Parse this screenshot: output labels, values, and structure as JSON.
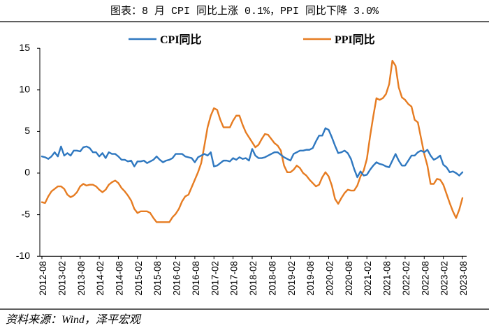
{
  "footer": {
    "source": "资料来源：Wind，泽平宏观"
  },
  "chart_data": {
    "type": "line",
    "title": "图表：8 月 CPI 同比上涨 0.1%，PPI 同比下降 3.0%",
    "ylim": [
      -10,
      15
    ],
    "yticks": [
      15,
      10,
      5,
      0,
      -5,
      -10
    ],
    "grid": false,
    "x_tick_step_months": 6,
    "x_ticks": [
      "2012-08",
      "2013-02",
      "2013-08",
      "2014-02",
      "2014-08",
      "2015-02",
      "2015-08",
      "2016-02",
      "2016-08",
      "2017-02",
      "2017-08",
      "2018-02",
      "2018-08",
      "2019-02",
      "2019-08",
      "2020-02",
      "2020-08",
      "2021-02",
      "2021-08",
      "2022-02",
      "2022-08",
      "2023-02",
      "2023-08"
    ],
    "series": [
      {
        "name": "CPI同比",
        "color": "#2f78c0",
        "values": [
          2.0,
          1.9,
          1.7,
          2.0,
          2.5,
          2.0,
          3.2,
          2.1,
          2.4,
          2.1,
          2.7,
          2.7,
          2.6,
          3.1,
          3.2,
          3.0,
          2.5,
          2.5,
          2.0,
          2.4,
          1.8,
          2.5,
          2.3,
          2.3,
          2.0,
          1.6,
          1.6,
          1.4,
          1.5,
          0.8,
          1.4,
          1.4,
          1.5,
          1.2,
          1.4,
          1.6,
          2.0,
          1.6,
          1.3,
          1.5,
          1.6,
          1.8,
          2.3,
          2.3,
          2.3,
          2.0,
          1.9,
          1.8,
          1.3,
          1.9,
          2.1,
          2.3,
          2.1,
          2.5,
          0.8,
          0.9,
          1.2,
          1.5,
          1.5,
          1.4,
          1.8,
          1.6,
          1.9,
          1.7,
          1.8,
          1.5,
          2.9,
          2.1,
          1.8,
          1.8,
          1.9,
          2.1,
          2.3,
          2.5,
          2.5,
          2.2,
          1.9,
          1.7,
          1.5,
          2.3,
          2.5,
          2.7,
          2.7,
          2.8,
          2.8,
          3.0,
          3.8,
          4.5,
          4.5,
          5.4,
          5.2,
          4.3,
          3.3,
          2.4,
          2.5,
          2.7,
          2.4,
          1.7,
          0.5,
          -0.5,
          0.2,
          -0.3,
          -0.2,
          0.4,
          0.9,
          1.3,
          1.1,
          1.0,
          0.8,
          0.7,
          1.5,
          2.3,
          1.5,
          0.9,
          0.9,
          1.5,
          2.1,
          2.1,
          2.5,
          2.7,
          2.5,
          2.8,
          2.1,
          1.6,
          1.8,
          2.1,
          1.0,
          0.7,
          0.1,
          0.2,
          0.0,
          -0.3,
          0.1
        ]
      },
      {
        "name": "PPI同比",
        "color": "#e67c22",
        "values": [
          -3.5,
          -3.6,
          -2.8,
          -2.2,
          -1.9,
          -1.6,
          -1.6,
          -1.9,
          -2.6,
          -2.9,
          -2.7,
          -2.3,
          -1.6,
          -1.3,
          -1.5,
          -1.4,
          -1.4,
          -1.6,
          -2.0,
          -2.3,
          -2.0,
          -1.4,
          -1.1,
          -0.9,
          -1.2,
          -1.8,
          -2.2,
          -2.7,
          -3.3,
          -4.3,
          -4.8,
          -4.6,
          -4.6,
          -4.6,
          -4.8,
          -5.4,
          -5.9,
          -5.9,
          -5.9,
          -5.9,
          -5.9,
          -5.3,
          -4.9,
          -4.3,
          -3.4,
          -2.8,
          -2.6,
          -1.7,
          -0.8,
          0.1,
          1.2,
          3.3,
          5.5,
          6.9,
          7.8,
          7.6,
          6.4,
          5.5,
          5.5,
          5.5,
          6.3,
          6.9,
          6.9,
          5.8,
          4.9,
          4.3,
          3.7,
          3.1,
          3.4,
          4.1,
          4.7,
          4.6,
          4.1,
          3.6,
          3.3,
          2.7,
          0.9,
          0.1,
          0.1,
          0.4,
          0.9,
          0.6,
          0.0,
          -0.3,
          -0.8,
          -1.2,
          -1.6,
          -1.4,
          -0.5,
          0.1,
          -0.4,
          -1.5,
          -3.1,
          -3.7,
          -3.0,
          -2.4,
          -2.0,
          -2.1,
          -2.1,
          -1.5,
          -0.4,
          0.3,
          1.7,
          4.4,
          6.8,
          9.0,
          8.8,
          9.0,
          9.5,
          10.7,
          13.5,
          12.9,
          10.3,
          9.1,
          8.8,
          8.3,
          8.0,
          6.4,
          6.1,
          4.2,
          2.3,
          0.9,
          -1.3,
          -1.3,
          -0.7,
          -0.8,
          -1.4,
          -2.5,
          -3.6,
          -4.6,
          -5.4,
          -4.4,
          -3.0
        ]
      }
    ]
  }
}
